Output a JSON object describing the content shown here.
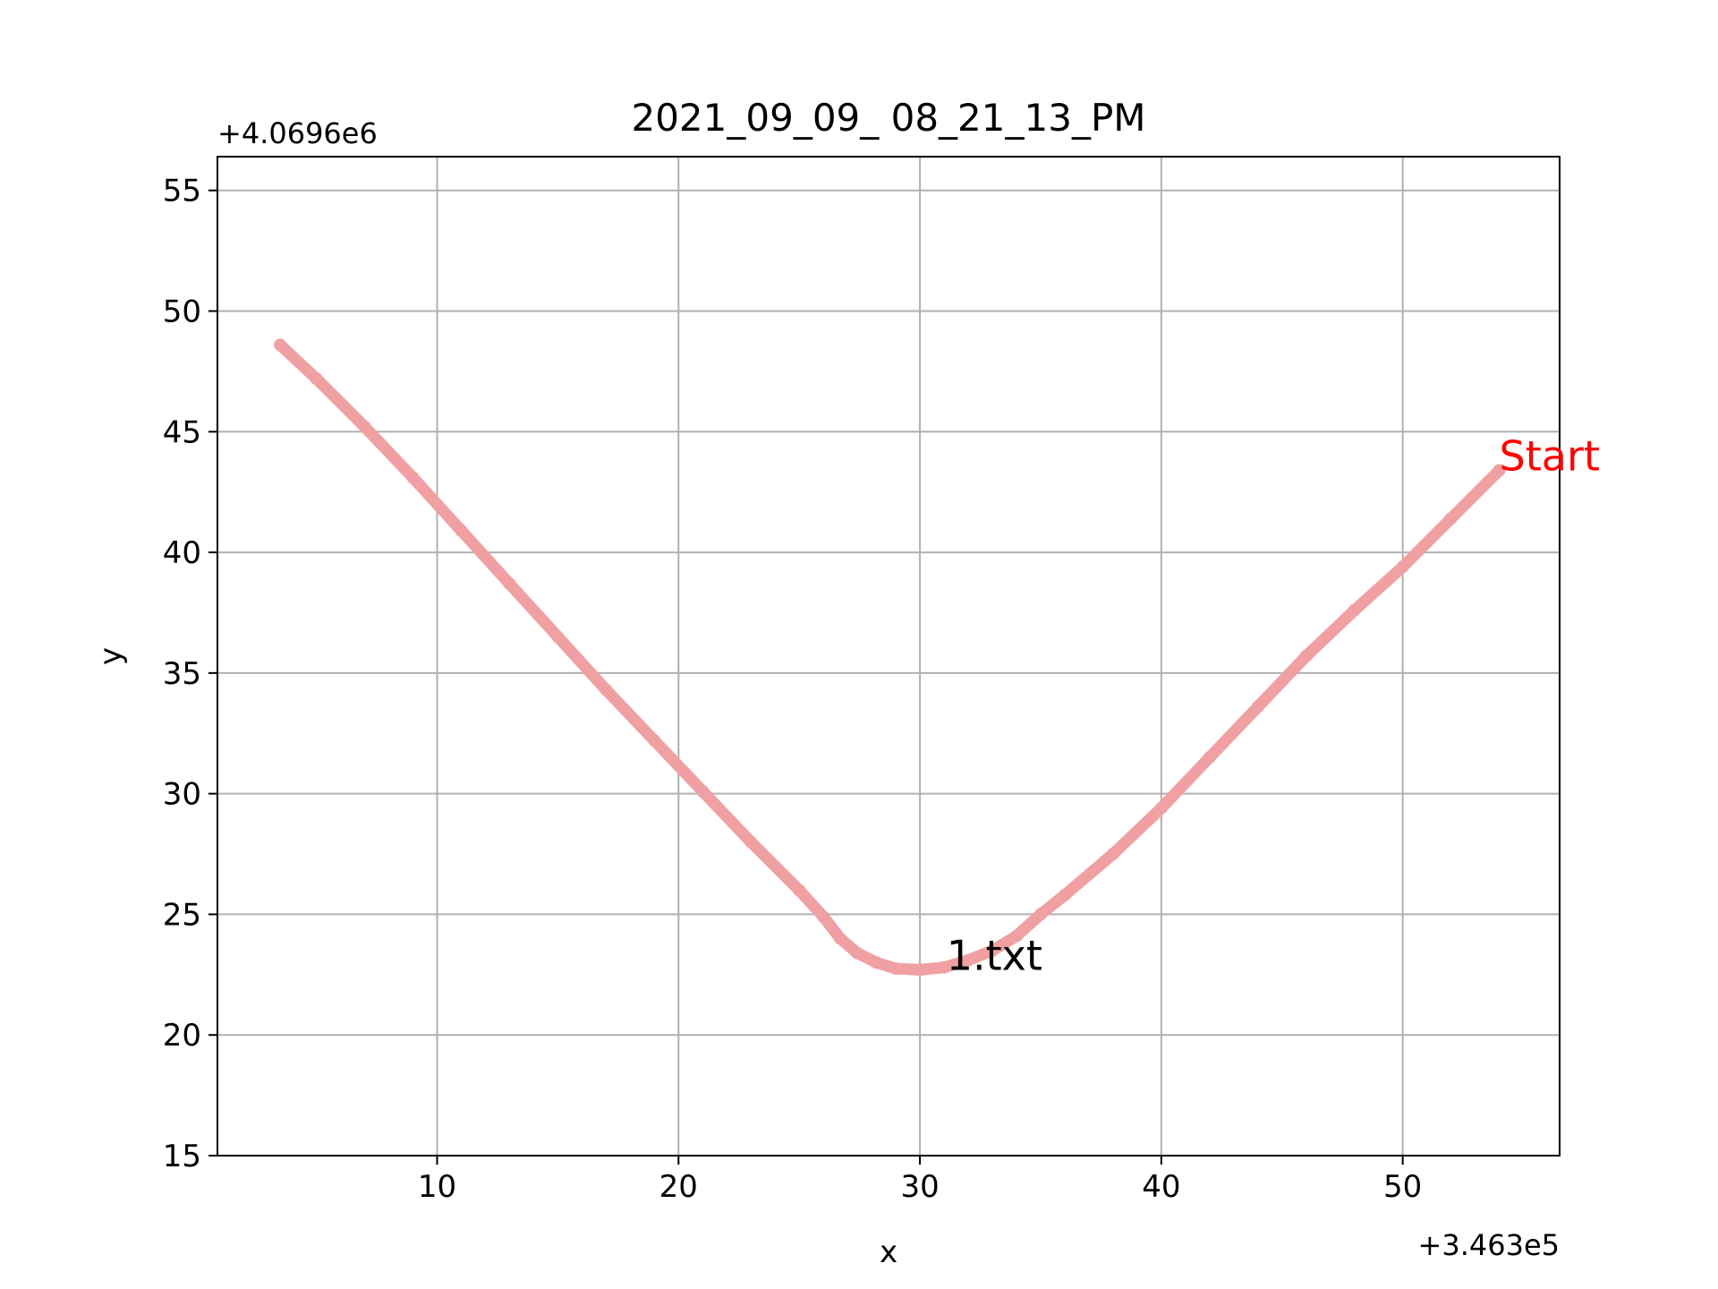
{
  "chart_data": {
    "type": "scatter",
    "title": "2021_09_09_ 08_21_13_PM",
    "xlabel": "x",
    "ylabel": "y",
    "x_offset_label": "+3.463e5",
    "y_offset_label": "+4.0696e6",
    "xlim": [
      0.9,
      56.5
    ],
    "ylim": [
      15,
      56.4
    ],
    "xticks": [
      10,
      20,
      30,
      40,
      50
    ],
    "yticks": [
      15,
      20,
      25,
      30,
      35,
      40,
      45,
      50,
      55
    ],
    "grid": true,
    "series": [
      {
        "color": "#f0a0a2",
        "x": [
          3.5,
          5.0,
          7.0,
          9.0,
          11.0,
          13.0,
          15.0,
          17.0,
          19.0,
          21.0,
          23.0,
          25.0,
          26.0,
          26.7,
          27.4,
          28.2,
          29.0,
          30.0,
          31.0,
          32.0,
          33.0,
          34.0,
          35.0,
          36.0,
          38.0,
          40.0,
          42.0,
          44.0,
          46.0,
          48.0,
          50.0,
          52.0,
          54.0
        ],
        "y": [
          48.6,
          47.2,
          45.2,
          43.1,
          40.9,
          38.7,
          36.5,
          34.3,
          32.2,
          30.1,
          28.0,
          26.0,
          24.9,
          24.0,
          23.4,
          23.0,
          22.75,
          22.7,
          22.8,
          23.1,
          23.5,
          24.1,
          25.0,
          25.8,
          27.5,
          29.4,
          31.5,
          33.6,
          35.7,
          37.6,
          39.4,
          41.4,
          43.4
        ]
      }
    ],
    "annotations": [
      {
        "text": "Start",
        "x": 54.0,
        "y": 43.4,
        "color": "#ff0000"
      },
      {
        "text": "1.txt",
        "x": 31.1,
        "y": 22.7,
        "color": "#000000"
      }
    ]
  }
}
